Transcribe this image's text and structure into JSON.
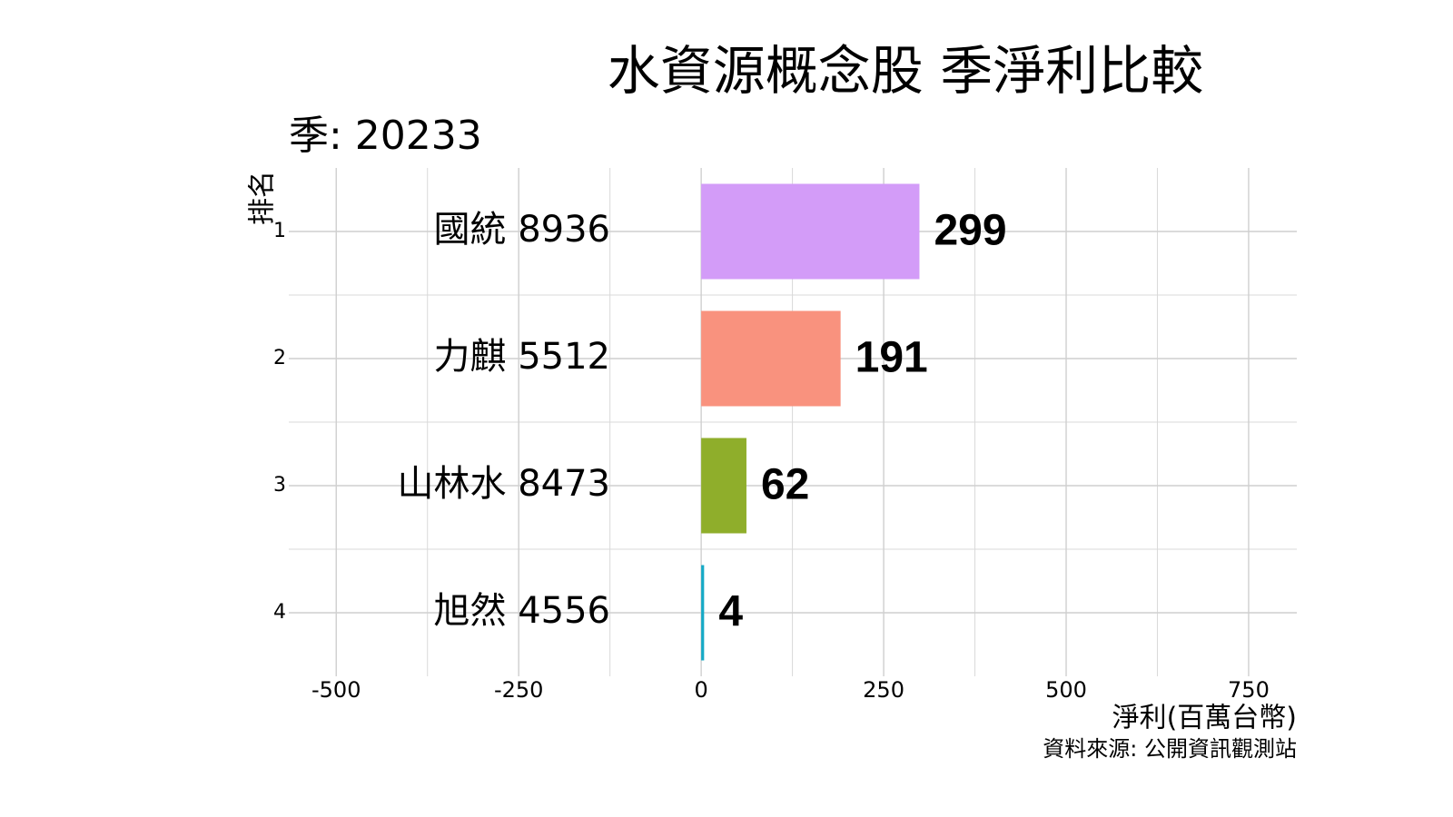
{
  "chart_data": {
    "type": "hbar",
    "title": "水資源概念股 季淨利比較",
    "subtitle": "季: 20233",
    "y_label": "排名",
    "x_label": "淨利(百萬台幣)",
    "caption": "資料來源: 公開資訊觀測站",
    "categories": [
      "1",
      "2",
      "3",
      "4"
    ],
    "labels": [
      "國統 8936",
      "力麒 5512",
      "山林水 8473",
      "旭然 4556"
    ],
    "values": [
      299,
      191,
      62,
      4
    ],
    "colors": [
      "#d39cf8",
      "#f9927e",
      "#8fae2b",
      "#16a9c6"
    ],
    "xlim": [
      -565,
      816
    ],
    "xticks": [
      -500,
      -250,
      0,
      250,
      500,
      750
    ],
    "xminorticks": [
      -375,
      -125,
      125,
      375,
      625
    ],
    "grid": true
  }
}
